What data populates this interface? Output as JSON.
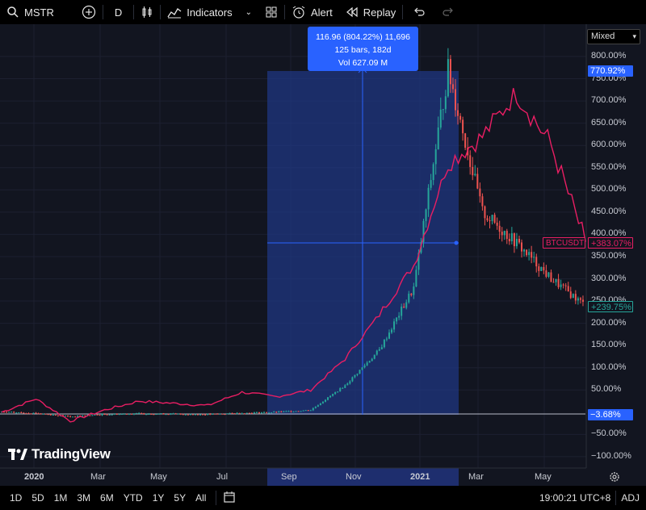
{
  "toolbar": {
    "symbol": "MSTR",
    "interval": "D",
    "indicators_label": "Indicators",
    "alert_label": "Alert",
    "replay_label": "Replay"
  },
  "tooltip": {
    "line1": "116.96 (804.22%) 11,696",
    "line2": "125 bars, 182d",
    "line3": "Vol 627.09 M"
  },
  "scale_mode": "Mixed",
  "price_axis": [
    "800.00%",
    "750.00%",
    "700.00%",
    "650.00%",
    "600.00%",
    "550.00%",
    "500.00%",
    "450.00%",
    "400.00%",
    "350.00%",
    "300.00%",
    "250.00%",
    "200.00%",
    "150.00%",
    "100.00%",
    "50.00%",
    "−50.00%",
    "−100.00%"
  ],
  "badges": {
    "top": "770.92%",
    "btc_name": "BTCUSDT",
    "btc_value": "+383.07%",
    "mstr_value": "+239.75%",
    "zero": "−3.68%"
  },
  "time_axis": [
    "2020",
    "Mar",
    "May",
    "Jul",
    "Sep",
    "Nov",
    "2021",
    "Mar",
    "May"
  ],
  "logo_text": "TradingView",
  "bottom": {
    "ranges": [
      "1D",
      "5D",
      "1M",
      "3M",
      "6M",
      "YTD",
      "1Y",
      "5Y",
      "All"
    ],
    "clock": "19:00:21 UTC+8",
    "adj": "ADJ"
  },
  "colors": {
    "btc_line": "#e91e63",
    "up_candle": "#26a69a",
    "down_candle": "#ef5350",
    "selection": "#2962ff"
  },
  "chart_data": {
    "type": "line",
    "x": [
      "2020-01",
      "2020-02",
      "2020-03",
      "2020-04",
      "2020-05",
      "2020-06",
      "2020-07",
      "2020-08",
      "2020-09",
      "2020-10",
      "2020-11",
      "2020-12",
      "2021-01",
      "2021-02",
      "2021-03",
      "2021-04",
      "2021-05",
      "2021-06"
    ],
    "series": [
      {
        "name": "BTCUSDT",
        "values": [
          0,
          30,
          -20,
          5,
          25,
          20,
          15,
          45,
          35,
          50,
          120,
          220,
          330,
          560,
          620,
          720,
          600,
          383
        ]
      },
      {
        "name": "MSTR",
        "values": [
          0,
          -2,
          -10,
          -5,
          -3,
          -4,
          -5,
          -2,
          0,
          5,
          60,
          140,
          280,
          770,
          450,
          380,
          300,
          240
        ]
      }
    ],
    "ylim": [
      -100,
      800
    ],
    "grid": true
  }
}
